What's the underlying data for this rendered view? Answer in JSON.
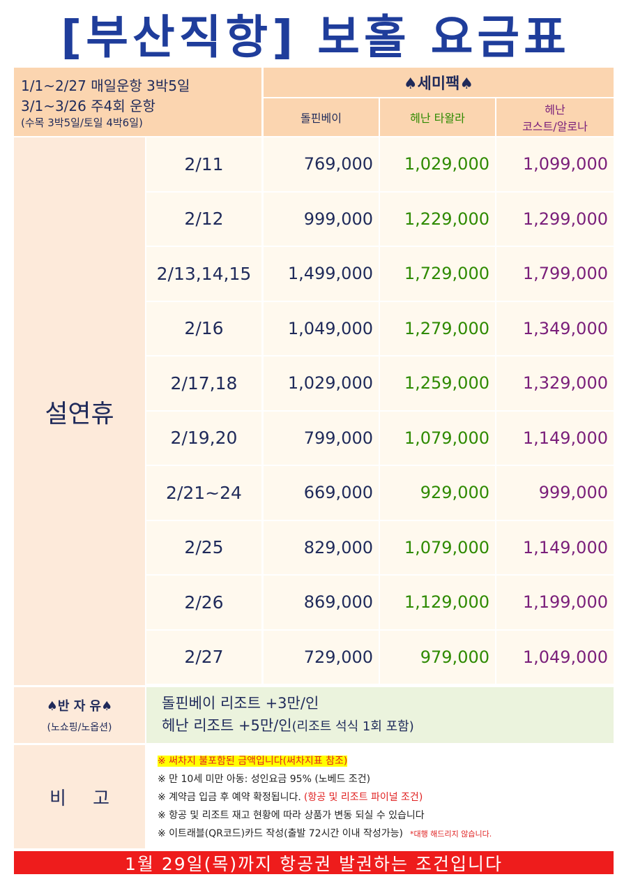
{
  "title": "[부산직항] 보홀 요금표",
  "info": [
    "1/1~2/27 매일운항 3박5일",
    "3/1~3/26 주4회 운항",
    "(수목 3박5일/토일 4박6일)"
  ],
  "package": "♠세미팩♠",
  "columns": [
    [
      "돌핀베이"
    ],
    [
      "헤난 타왈라"
    ],
    [
      "헤난",
      "코스트/알로나"
    ]
  ],
  "season": "설연휴",
  "rows": [
    {
      "date": "2/11",
      "prices": [
        "769,000",
        "1,029,000",
        "1,099,000"
      ]
    },
    {
      "date": "2/12",
      "prices": [
        "999,000",
        "1,229,000",
        "1,299,000"
      ]
    },
    {
      "date": "2/13,14,15",
      "prices": [
        "1,499,000",
        "1,729,000",
        "1,799,000"
      ]
    },
    {
      "date": "2/16",
      "prices": [
        "1,049,000",
        "1,279,000",
        "1,349,000"
      ]
    },
    {
      "date": "2/17,18",
      "prices": [
        "1,029,000",
        "1,259,000",
        "1,329,000"
      ]
    },
    {
      "date": "2/19,20",
      "prices": [
        "799,000",
        "1,079,000",
        "1,149,000"
      ]
    },
    {
      "date": "2/21~24",
      "prices": [
        "669,000",
        "929,000",
        "999,000"
      ]
    },
    {
      "date": "2/25",
      "prices": [
        "829,000",
        "1,079,000",
        "1,149,000"
      ]
    },
    {
      "date": "2/26",
      "prices": [
        "869,000",
        "1,129,000",
        "1,199,000"
      ]
    },
    {
      "date": "2/27",
      "prices": [
        "729,000",
        "979,000",
        "1,049,000"
      ]
    }
  ],
  "option": {
    "label": "♠반 자 유♠",
    "sub": "(노쇼핑/노옵션)",
    "lines": [
      [
        "돌핀베이 리조트 +3만/인"
      ],
      [
        "헤난 리조트 +5만/인",
        "(리조트 석식 1회 포함)"
      ]
    ]
  },
  "notes": {
    "label": "비 고",
    "items": [
      [
        "※ 써차지 불포함된 금액입니다(써차지표 참조)"
      ],
      [
        "※ 만 10세 미만 아동: 성인요금 95% (노베드 조건)"
      ],
      [
        "※ 계약금 입금 후 예약 확정됩니다.",
        "(항공 및 리조트 파이널 조건)"
      ],
      [
        "※ 항공 및 리조트 재고 현황에 따라 상품가 변동 되실 수 있습니다"
      ],
      [
        "※ 이트래블(QR코드)카드 작성(출발 72시간 이내 작성가능)",
        "*대행 해드리지 않습니다."
      ]
    ]
  },
  "footer": "1월 29일(목)까지 항공권 발권하는 조건입니다"
}
